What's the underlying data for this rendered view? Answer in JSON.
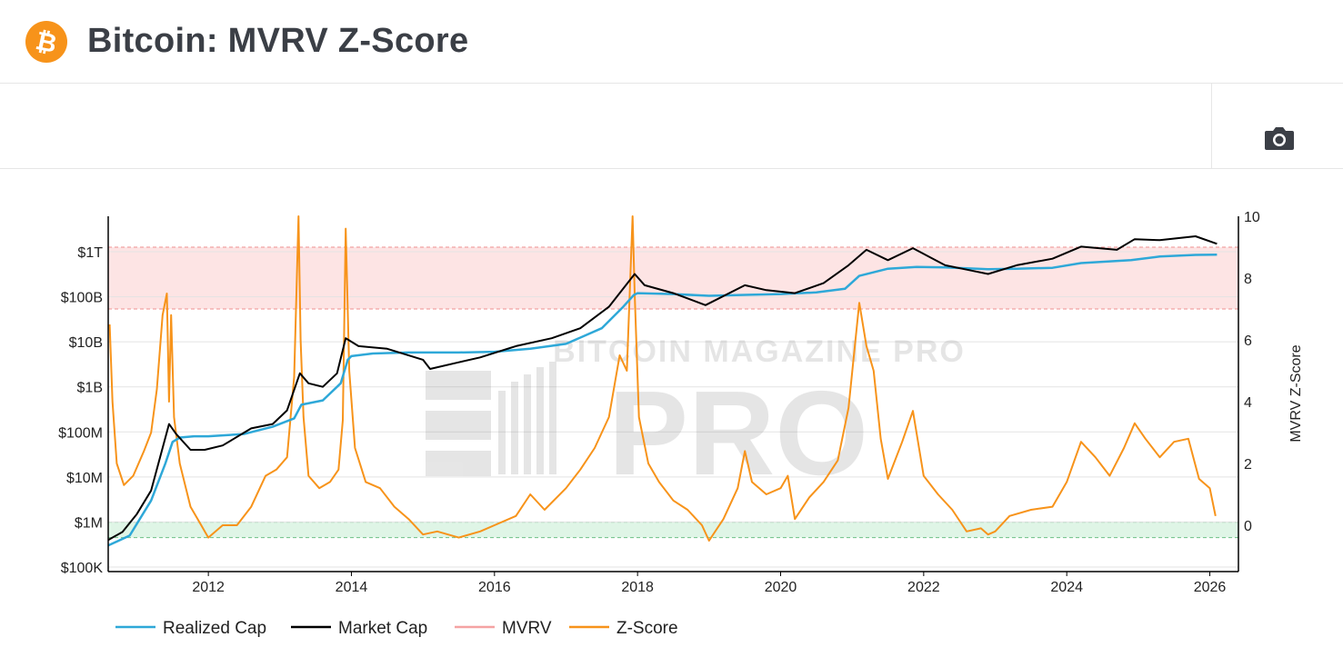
{
  "page": {
    "title": "Bitcoin: MVRV Z-Score"
  },
  "header": {
    "logo_icon": "bitcoin-logo-icon",
    "logo_glyph": "₿",
    "camera_icon": "camera-icon"
  },
  "colors": {
    "bitcoin_orange": "#f7931a",
    "realized_cap": "#2ea8d8",
    "market_cap": "#000000",
    "mvrv": "#f5a3a3",
    "zscore": "#f7931a",
    "overvalued_band": "#fde4e4",
    "undervalued_band": "#dff5e6"
  },
  "chart_data": {
    "type": "line",
    "legend_position": "bottom",
    "grid": true,
    "watermark": "BITCOIN MAGAZINE PRO",
    "x_axis": {
      "ticks": [
        "2012",
        "2014",
        "2016",
        "2018",
        "2020",
        "2022",
        "2024",
        "2026"
      ],
      "range": [
        2010.6,
        2026.4
      ]
    },
    "y_left": {
      "scale": "log",
      "range": [
        100000,
        3000000000000
      ],
      "ticks": [
        "$100K",
        "$1M",
        "$10M",
        "$100M",
        "$1B",
        "$10B",
        "$100B",
        "$1T"
      ]
    },
    "y_right": {
      "label": "MVRV Z-Score",
      "range": [
        -1,
        10
      ],
      "ticks": [
        "0",
        "2",
        "4",
        "6",
        "8",
        "10"
      ]
    },
    "bands": [
      {
        "name": "overvalued",
        "z_range": [
          7.0,
          9.0
        ]
      },
      {
        "name": "undervalued",
        "z_range": [
          -0.4,
          0.1
        ]
      }
    ],
    "series": [
      {
        "name": "Realized Cap",
        "axis": "left",
        "x": [
          2010.6,
          2010.9,
          2011.2,
          2011.4,
          2011.5,
          2011.6,
          2011.8,
          2012.0,
          2012.5,
          2012.9,
          2013.2,
          2013.3,
          2013.6,
          2013.85,
          2013.95,
          2014.0,
          2014.3,
          2014.8,
          2015.5,
          2016.0,
          2016.5,
          2017.0,
          2017.5,
          2017.8,
          2017.95,
          2018.0,
          2018.5,
          2019.0,
          2019.5,
          2020.0,
          2020.5,
          2020.9,
          2021.1,
          2021.5,
          2021.9,
          2022.3,
          2022.6,
          2022.9,
          2023.3,
          2023.8,
          2024.2,
          2024.9,
          2025.3,
          2025.8,
          2026.1
        ],
        "y": [
          300000,
          500000,
          3000000,
          20000000,
          60000000,
          75000000,
          80000000,
          80000000,
          90000000,
          130000000,
          200000000,
          400000000,
          500000000,
          1200000000,
          4000000000,
          4800000000,
          5500000000,
          5800000000,
          5800000000,
          6000000000,
          7000000000,
          9000000000,
          20000000000,
          60000000000,
          110000000000,
          120000000000,
          115000000000,
          105000000000,
          110000000000,
          115000000000,
          125000000000,
          150000000000,
          290000000000,
          420000000000,
          460000000000,
          450000000000,
          430000000000,
          410000000000,
          420000000000,
          440000000000,
          560000000000,
          650000000000,
          780000000000,
          850000000000,
          860000000000
        ]
      },
      {
        "name": "Market Cap",
        "axis": "left",
        "x": [
          2010.6,
          2010.8,
          2011.0,
          2011.2,
          2011.45,
          2011.55,
          2011.75,
          2011.95,
          2012.2,
          2012.6,
          2012.9,
          2013.1,
          2013.28,
          2013.4,
          2013.6,
          2013.8,
          2013.92,
          2014.1,
          2014.5,
          2015.0,
          2015.1,
          2015.5,
          2015.8,
          2016.3,
          2016.8,
          2017.2,
          2017.6,
          2017.96,
          2018.1,
          2018.5,
          2018.95,
          2019.5,
          2019.8,
          2020.2,
          2020.6,
          2020.95,
          2021.2,
          2021.5,
          2021.85,
          2022.3,
          2022.6,
          2022.9,
          2023.3,
          2023.8,
          2024.2,
          2024.7,
          2024.95,
          2025.3,
          2025.8,
          2026.1
        ],
        "y": [
          400000,
          600000,
          1500000,
          5000000,
          150000000,
          90000000,
          40000000,
          40000000,
          50000000,
          120000000,
          150000000,
          300000000,
          2000000000,
          1200000000,
          1000000000,
          2000000000,
          12000000000,
          8000000000,
          7000000000,
          4000000000,
          2500000000,
          3500000000,
          4500000000,
          8000000000,
          12000000000,
          20000000000,
          60000000000,
          320000000000,
          180000000000,
          120000000000,
          65000000000,
          180000000000,
          140000000000,
          120000000000,
          200000000000,
          500000000000,
          1100000000000,
          650000000000,
          1200000000000,
          500000000000,
          400000000000,
          320000000000,
          500000000000,
          700000000000,
          1300000000000,
          1100000000000,
          1900000000000,
          1800000000000,
          2200000000000,
          1500000000000
        ]
      },
      {
        "name": "MVRV",
        "axis": "right",
        "x": [],
        "y": []
      },
      {
        "name": "Z-Score",
        "axis": "right",
        "x": [
          2010.62,
          2010.66,
          2010.72,
          2010.82,
          2010.95,
          2011.1,
          2011.2,
          2011.28,
          2011.36,
          2011.42,
          2011.45,
          2011.48,
          2011.52,
          2011.6,
          2011.75,
          2011.9,
          2012.0,
          2012.2,
          2012.4,
          2012.6,
          2012.8,
          2012.95,
          2013.1,
          2013.2,
          2013.26,
          2013.29,
          2013.33,
          2013.4,
          2013.55,
          2013.7,
          2013.82,
          2013.88,
          2013.92,
          2013.97,
          2014.05,
          2014.2,
          2014.4,
          2014.6,
          2014.8,
          2015.0,
          2015.2,
          2015.5,
          2015.8,
          2016.0,
          2016.3,
          2016.5,
          2016.7,
          2017.0,
          2017.2,
          2017.4,
          2017.6,
          2017.75,
          2017.85,
          2017.93,
          2017.96,
          2018.02,
          2018.15,
          2018.3,
          2018.5,
          2018.7,
          2018.9,
          2019.0,
          2019.2,
          2019.4,
          2019.5,
          2019.6,
          2019.8,
          2020.0,
          2020.1,
          2020.2,
          2020.4,
          2020.6,
          2020.8,
          2020.95,
          2021.1,
          2021.2,
          2021.3,
          2021.4,
          2021.5,
          2021.7,
          2021.85,
          2022.0,
          2022.2,
          2022.4,
          2022.6,
          2022.8,
          2022.9,
          2023.0,
          2023.2,
          2023.5,
          2023.8,
          2024.0,
          2024.2,
          2024.4,
          2024.6,
          2024.8,
          2024.95,
          2025.1,
          2025.3,
          2025.5,
          2025.7,
          2025.85,
          2026.0,
          2026.08
        ],
        "y": [
          6.5,
          4.0,
          2.0,
          1.3,
          1.6,
          2.4,
          3.0,
          4.4,
          6.8,
          7.5,
          4.0,
          6.8,
          3.5,
          2.0,
          0.6,
          0.0,
          -0.4,
          0.0,
          0.0,
          0.6,
          1.6,
          1.8,
          2.2,
          4.8,
          10.0,
          6.0,
          3.5,
          1.6,
          1.2,
          1.4,
          1.8,
          3.4,
          9.6,
          5.0,
          2.5,
          1.4,
          1.2,
          0.6,
          0.2,
          -0.3,
          -0.2,
          -0.4,
          -0.2,
          0.0,
          0.3,
          1.0,
          0.5,
          1.2,
          1.8,
          2.5,
          3.5,
          5.5,
          5.0,
          10.0,
          7.5,
          3.5,
          2.0,
          1.4,
          0.8,
          0.5,
          0.0,
          -0.5,
          0.2,
          1.2,
          2.4,
          1.4,
          1.0,
          1.2,
          1.6,
          0.2,
          0.9,
          1.4,
          2.1,
          3.8,
          7.2,
          5.8,
          5.0,
          2.8,
          1.5,
          2.7,
          3.7,
          1.6,
          1.0,
          0.5,
          -0.2,
          -0.1,
          -0.3,
          -0.2,
          0.3,
          0.5,
          0.6,
          1.4,
          2.7,
          2.2,
          1.6,
          2.5,
          3.3,
          2.8,
          2.2,
          2.7,
          2.8,
          1.5,
          1.2,
          0.3
        ]
      }
    ]
  }
}
